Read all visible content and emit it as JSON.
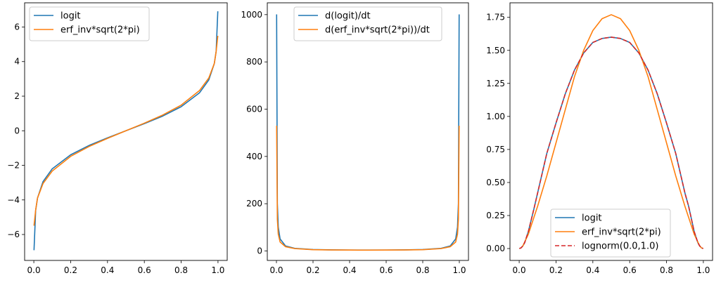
{
  "chart_data": [
    {
      "type": "line",
      "title": "",
      "xlabel": "",
      "ylabel": "",
      "xlim": [
        -0.05,
        1.05
      ],
      "ylim": [
        -7.5,
        7.4
      ],
      "xticks": [
        "0.0",
        "0.2",
        "0.4",
        "0.6",
        "0.8",
        "1.0"
      ],
      "yticks": [
        "−6",
        "−4",
        "−2",
        "0",
        "2",
        "4",
        "6"
      ],
      "legend_position": "top-left",
      "series": [
        {
          "name": "logit",
          "color": "#1f77b4",
          "dash": "solid",
          "x": [
            0.001,
            0.01,
            0.02,
            0.05,
            0.1,
            0.2,
            0.3,
            0.4,
            0.5,
            0.6,
            0.7,
            0.8,
            0.9,
            0.95,
            0.98,
            0.99,
            0.999
          ],
          "y": [
            -6.91,
            -4.6,
            -3.89,
            -2.94,
            -2.2,
            -1.39,
            -0.85,
            -0.41,
            0,
            0.41,
            0.85,
            1.39,
            2.2,
            2.94,
            3.89,
            4.6,
            6.91
          ]
        },
        {
          "name": "erf_inv*sqrt(2*pi)",
          "color": "#ff7f0e",
          "dash": "solid",
          "x": [
            0.001,
            0.01,
            0.02,
            0.05,
            0.1,
            0.2,
            0.3,
            0.4,
            0.5,
            0.6,
            0.7,
            0.8,
            0.9,
            0.95,
            0.98,
            0.99,
            0.999
          ],
          "y": [
            -5.49,
            -4.58,
            -3.89,
            -3.05,
            -2.33,
            -1.48,
            -0.91,
            -0.44,
            0,
            0.44,
            0.91,
            1.48,
            2.33,
            3.05,
            3.89,
            4.58,
            5.49
          ]
        }
      ]
    },
    {
      "type": "line",
      "title": "",
      "xlabel": "",
      "ylabel": "",
      "xlim": [
        -0.05,
        1.05
      ],
      "ylim": [
        -40,
        1050
      ],
      "xticks": [
        "0.0",
        "0.2",
        "0.4",
        "0.6",
        "0.8",
        "1.0"
      ],
      "yticks": [
        "0",
        "200",
        "400",
        "600",
        "800",
        "1000"
      ],
      "legend_position": "top-center",
      "series": [
        {
          "name": "d(logit)/dt",
          "color": "#1f77b4",
          "dash": "solid",
          "x": [
            0.001,
            0.005,
            0.01,
            0.02,
            0.05,
            0.1,
            0.2,
            0.3,
            0.4,
            0.5,
            0.6,
            0.7,
            0.8,
            0.9,
            0.95,
            0.98,
            0.99,
            0.995,
            0.999
          ],
          "y": [
            1001,
            201,
            101,
            51,
            21,
            11.1,
            6.25,
            4.76,
            4.17,
            4,
            4.17,
            4.76,
            6.25,
            11.1,
            21,
            51,
            101,
            201,
            1001
          ]
        },
        {
          "name": "d(erf_inv*sqrt(2*pi))/dt",
          "color": "#ff7f0e",
          "dash": "solid",
          "x": [
            0.001,
            0.005,
            0.01,
            0.02,
            0.05,
            0.1,
            0.2,
            0.3,
            0.4,
            0.5,
            0.6,
            0.7,
            0.8,
            0.9,
            0.95,
            0.98,
            0.99,
            0.995,
            0.999
          ],
          "y": [
            530,
            135,
            71,
            38,
            18,
            10.1,
            5.6,
            4.36,
            3.88,
            3.54,
            3.88,
            4.36,
            5.6,
            10.1,
            18,
            38,
            71,
            135,
            530
          ]
        }
      ]
    },
    {
      "type": "line",
      "title": "",
      "xlabel": "",
      "ylabel": "",
      "xlim": [
        -0.05,
        1.05
      ],
      "ylim": [
        -0.09,
        1.86
      ],
      "xticks": [
        "0.0",
        "0.2",
        "0.4",
        "0.6",
        "0.8",
        "1.0"
      ],
      "yticks": [
        "0.00",
        "0.25",
        "0.50",
        "0.75",
        "1.00",
        "1.25",
        "1.50",
        "1.75"
      ],
      "legend_position": "bottom-center",
      "series": [
        {
          "name": "logit",
          "color": "#1f77b4",
          "dash": "solid",
          "x": [
            0.001,
            0.01,
            0.02,
            0.03,
            0.05,
            0.08,
            0.1,
            0.15,
            0.2,
            0.25,
            0.3,
            0.35,
            0.4,
            0.45,
            0.5,
            0.55,
            0.6,
            0.65,
            0.7,
            0.75,
            0.8,
            0.85,
            0.9,
            0.92,
            0.95,
            0.97,
            0.98,
            0.99,
            0.999
          ],
          "y": [
            0,
            0.005,
            0.02,
            0.045,
            0.13,
            0.3,
            0.42,
            0.72,
            0.95,
            1.17,
            1.35,
            1.48,
            1.56,
            1.59,
            1.6,
            1.59,
            1.56,
            1.48,
            1.35,
            1.17,
            0.95,
            0.72,
            0.42,
            0.32,
            0.13,
            0.045,
            0.02,
            0.005,
            0
          ]
        },
        {
          "name": "erf_inv*sqrt(2*pi)",
          "color": "#ff7f0e",
          "dash": "solid",
          "x": [
            0.001,
            0.01,
            0.02,
            0.05,
            0.1,
            0.15,
            0.2,
            0.25,
            0.3,
            0.35,
            0.4,
            0.45,
            0.5,
            0.55,
            0.6,
            0.65,
            0.7,
            0.75,
            0.8,
            0.85,
            0.9,
            0.95,
            0.98,
            0.99,
            0.999
          ],
          "y": [
            0,
            0.005,
            0.02,
            0.11,
            0.32,
            0.55,
            0.8,
            1.05,
            1.3,
            1.5,
            1.65,
            1.74,
            1.77,
            1.74,
            1.65,
            1.5,
            1.3,
            1.05,
            0.8,
            0.55,
            0.32,
            0.11,
            0.02,
            0.005,
            0
          ]
        },
        {
          "name": "lognorm(0.0,1.0)",
          "color": "#d62728",
          "dash": "dashed",
          "x": [
            0.001,
            0.01,
            0.02,
            0.03,
            0.05,
            0.08,
            0.1,
            0.15,
            0.2,
            0.25,
            0.3,
            0.35,
            0.4,
            0.45,
            0.5,
            0.55,
            0.6,
            0.65,
            0.7,
            0.75,
            0.8,
            0.85,
            0.9,
            0.92,
            0.95,
            0.97,
            0.98,
            0.99,
            0.999
          ],
          "y": [
            0,
            0.005,
            0.02,
            0.045,
            0.13,
            0.3,
            0.42,
            0.72,
            0.95,
            1.17,
            1.35,
            1.48,
            1.56,
            1.59,
            1.6,
            1.59,
            1.56,
            1.48,
            1.35,
            1.17,
            0.95,
            0.72,
            0.42,
            0.32,
            0.13,
            0.045,
            0.02,
            0.005,
            0
          ]
        }
      ]
    }
  ]
}
